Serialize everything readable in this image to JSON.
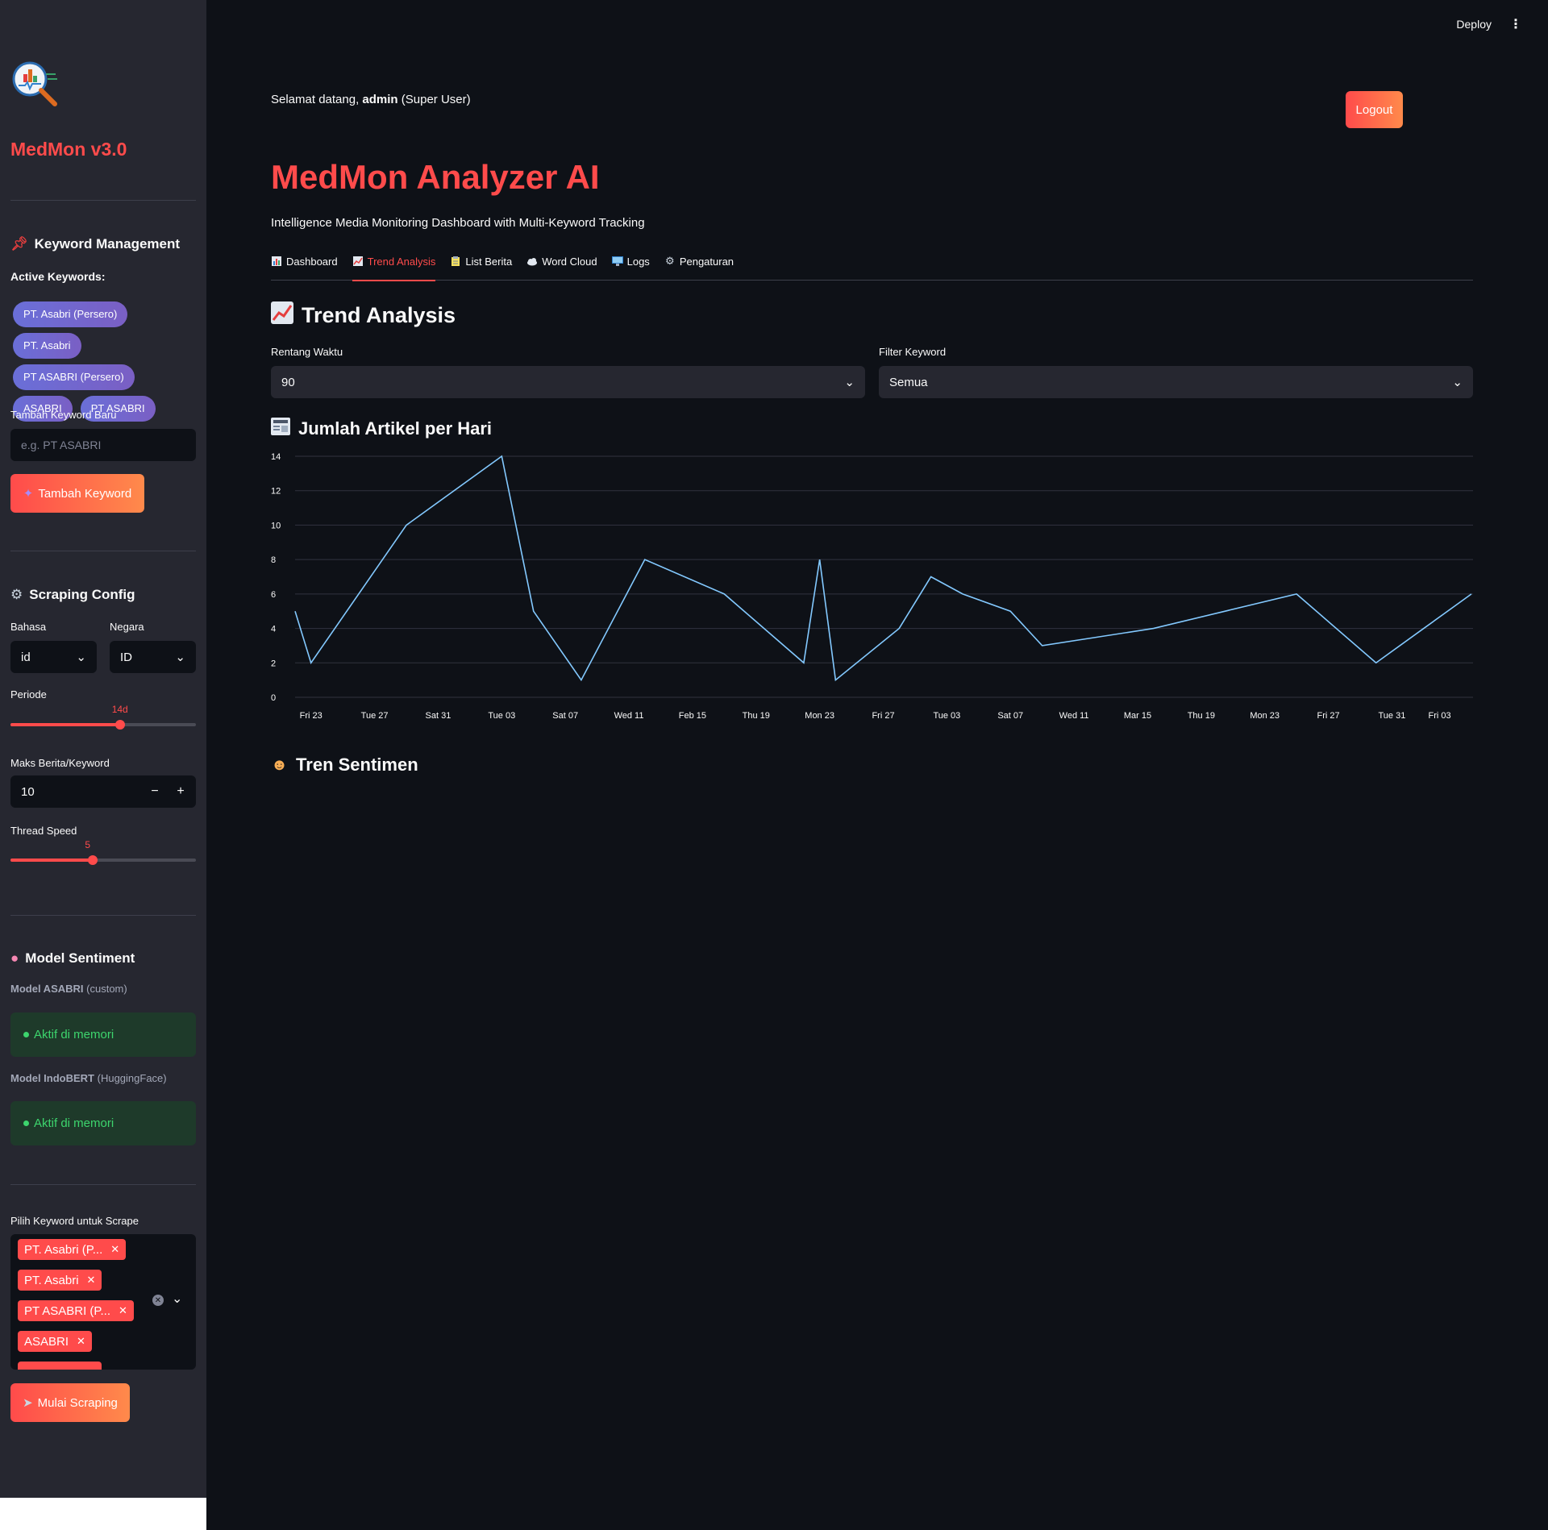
{
  "header": {
    "deploy_label": "Deploy",
    "menu_icon": "kebab-menu-icon"
  },
  "sidebar": {
    "app_name": "MedMon v3.0",
    "keyword_section": {
      "title": "Keyword Management",
      "active_label": "Active Keywords:",
      "keywords": [
        "PT. Asabri (Persero)",
        "PT. Asabri",
        "PT ASABRI (Persero)",
        "ASABRI",
        "PT ASABRI"
      ],
      "new_label": "Tambah Keyword Baru",
      "new_placeholder": "e.g. PT ASABRI",
      "add_button": "Tambah Keyword"
    },
    "scraping": {
      "title": "Scraping Config",
      "bahasa_label": "Bahasa",
      "bahasa_value": "id",
      "negara_label": "Negara",
      "negara_value": "ID",
      "periode_label": "Periode",
      "periode_value": "14d",
      "periode_fraction": 0.59,
      "maks_label": "Maks Berita/Keyword",
      "maks_value": "10",
      "thread_label": "Thread Speed",
      "thread_value": "5",
      "thread_fraction": 0.445
    },
    "model": {
      "title": "Model Sentiment",
      "asabri_name": "Model ASABRI",
      "asabri_tag": "(custom)",
      "asabri_status": "Aktif di memori",
      "indobert_name": "Model IndoBERT",
      "indobert_tag": "(HuggingFace)",
      "indobert_status": "Aktif di memori"
    },
    "scrape": {
      "label": "Pilih Keyword untuk Scrape",
      "selected": [
        "PT. Asabri (P...",
        "PT. Asabri",
        "PT ASABRI (P...",
        "ASABRI"
      ],
      "start_button": "Mulai Scraping"
    }
  },
  "main": {
    "welcome_prefix": "Selamat datang, ",
    "welcome_user": "admin",
    "welcome_suffix": " (Super User)",
    "logout_button": "Logout",
    "title": "MedMon Analyzer AI",
    "subtitle": "Intelligence Media Monitoring Dashboard with Multi-Keyword Tracking",
    "tabs": [
      {
        "label": "Dashboard",
        "icon": "bar-chart-icon"
      },
      {
        "label": "Trend Analysis",
        "icon": "trend-up-icon"
      },
      {
        "label": "List Berita",
        "icon": "clipboard-icon"
      },
      {
        "label": "Word Cloud",
        "icon": "cloud-icon"
      },
      {
        "label": "Logs",
        "icon": "monitor-icon"
      },
      {
        "label": "Pengaturan",
        "icon": "gear-icon"
      }
    ],
    "active_tab": "Trend Analysis",
    "section_title": "Trend Analysis",
    "rentang_label": "Rentang Waktu",
    "rentang_value": "90",
    "filter_label": "Filter Keyword",
    "filter_value": "Semua",
    "chart_title": "Jumlah Artikel per Hari",
    "sentiment_title": "Tren Sentimen"
  },
  "colors": {
    "accent": "#ff4b4b",
    "line": "#83c9ff",
    "chip": "#6a6fd8",
    "success": "#3dd56d"
  },
  "chart_data": {
    "type": "line",
    "title": "",
    "y_ticks": [
      0,
      2,
      4,
      6,
      8,
      10,
      12,
      14
    ],
    "ylim": [
      0,
      14
    ],
    "x_tick_labels": [
      "Fri 23",
      "Tue 27",
      "Sat 31",
      "Tue 03",
      "Sat 07",
      "Wed 11",
      "Feb 15",
      "Thu 19",
      "Mon 23",
      "Fri 27",
      "Tue 03",
      "Sat 07",
      "Wed 11",
      "Mar 15",
      "Thu 19",
      "Mon 23",
      "Fri 27",
      "Tue 31",
      "Fri 03"
    ],
    "x_tick_days": [
      2,
      6,
      10,
      14,
      18,
      22,
      26,
      30,
      34,
      38,
      42,
      46,
      50,
      54,
      58,
      62,
      66,
      70,
      73
    ],
    "x_range_days": [
      1,
      75
    ],
    "series": [
      {
        "x_days": [
          1,
          2,
          8,
          14,
          16,
          19,
          23,
          28,
          33,
          34,
          35,
          39,
          41,
          43,
          46,
          48,
          55,
          64,
          69,
          72,
          75
        ],
        "values": [
          5,
          2,
          10,
          14,
          5,
          1,
          8,
          6,
          2,
          8,
          1,
          4,
          7,
          6,
          5,
          3,
          4,
          6,
          2,
          4,
          6
        ]
      }
    ],
    "grid": true
  }
}
